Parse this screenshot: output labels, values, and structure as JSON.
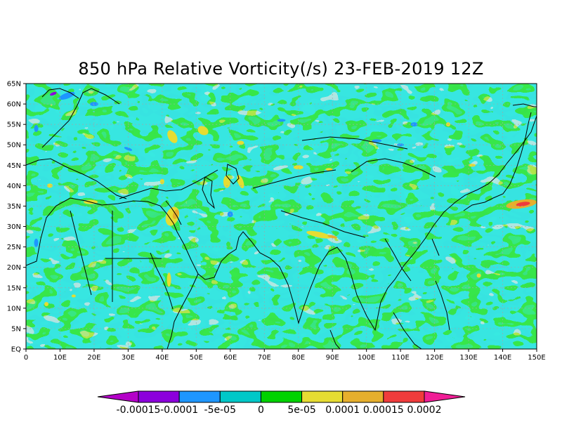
{
  "title": "850 hPa Relative Vorticity(/s) 23-FEB-2019 12Z",
  "map": {
    "lon_range": [
      0,
      150
    ],
    "lat_range": [
      0,
      65
    ],
    "lon_ticks": [
      "0",
      "10E",
      "20E",
      "30E",
      "40E",
      "50E",
      "60E",
      "70E",
      "80E",
      "90E",
      "100E",
      "110E",
      "120E",
      "130E",
      "140E",
      "150E"
    ],
    "lat_ticks": [
      "EQ",
      "5N",
      "10N",
      "15N",
      "20N",
      "25N",
      "30N",
      "35N",
      "40N",
      "45N",
      "50N",
      "55N",
      "60N",
      "65N"
    ],
    "grid": true,
    "coastlines": true
  },
  "colorbar": {
    "labels": [
      "-0.00015",
      "-0.0001",
      "-5e-05",
      "0",
      "5e-05",
      "0.0001",
      "0.00015",
      "0.0002"
    ],
    "under_color": "#b400c8",
    "over_color": "#f01e96",
    "colors": [
      "#8c00dc",
      "#1e96ff",
      "#00c8c8",
      "#00d200",
      "#e6dc32",
      "#e6af2d",
      "#f03c3c"
    ]
  }
}
